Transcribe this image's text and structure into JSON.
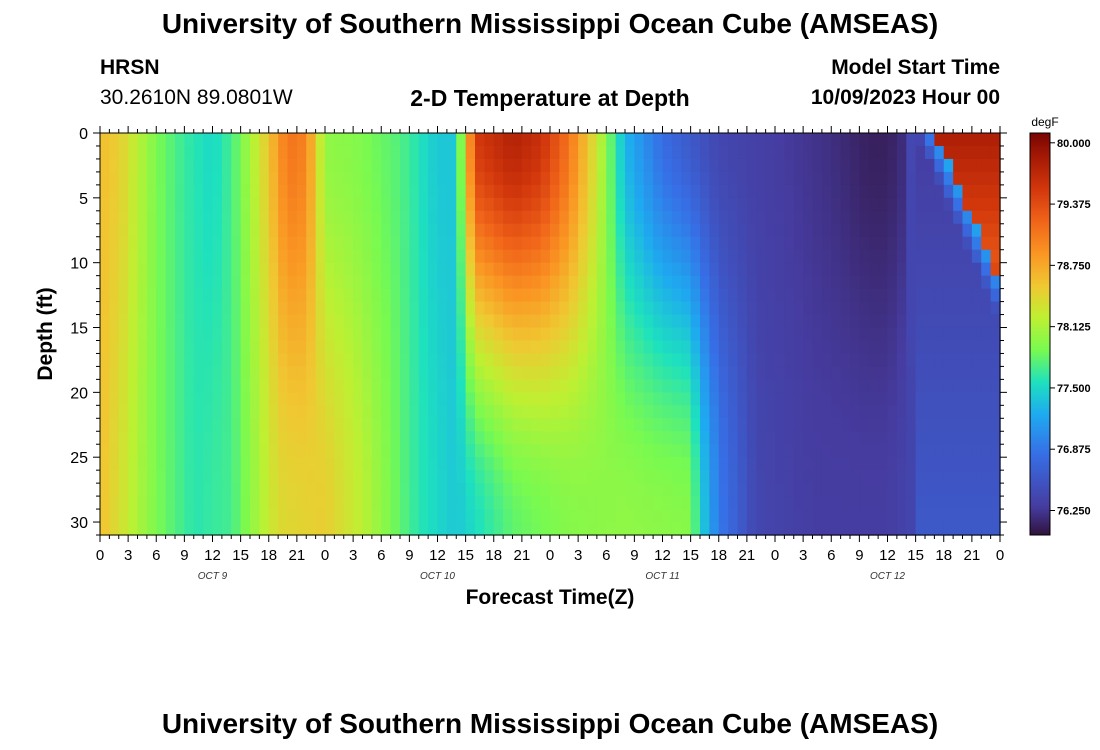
{
  "header": {
    "title": "University of Southern Mississippi Ocean Cube (AMSEAS)",
    "station": "HRSN",
    "coords": "30.2610N  89.0801W",
    "subtitle": "2-D Temperature at Depth",
    "start_label": "Model Start Time",
    "start_value": "10/09/2023 Hour 00"
  },
  "footer": {
    "title": "University of Southern Mississippi Ocean Cube (AMSEAS)"
  },
  "chart_data": {
    "type": "heatmap",
    "title": "2-D Temperature at Depth",
    "xlabel": "Forecast Time(Z)",
    "ylabel": "Depth (ft)",
    "x_range_hours": [
      0,
      96
    ],
    "y_range_ft": [
      0,
      31
    ],
    "x_tick_labels": [
      "0",
      "3",
      "6",
      "9",
      "12",
      "15",
      "18",
      "21",
      "0",
      "3",
      "6",
      "9",
      "12",
      "15",
      "18",
      "21",
      "0",
      "3",
      "6",
      "9",
      "12",
      "15",
      "18",
      "21",
      "0",
      "3",
      "6",
      "9",
      "12",
      "15",
      "18",
      "21",
      "0"
    ],
    "y_ticks": [
      0,
      5,
      10,
      15,
      20,
      25,
      30
    ],
    "day_labels": [
      "OCT 9",
      "OCT 10",
      "OCT 11",
      "OCT 12"
    ],
    "colorbar": {
      "unit": "degF",
      "min": 76.0,
      "max": 80.1,
      "ticks": [
        "80.000",
        "79.375",
        "78.750",
        "78.125",
        "77.500",
        "76.875",
        "76.250"
      ],
      "tick_values": [
        80.0,
        79.375,
        78.75,
        78.125,
        77.5,
        76.875,
        76.25
      ]
    },
    "surface_temp_degF": [
      {
        "h": 0,
        "v": 78.6
      },
      {
        "h": 2,
        "v": 78.5
      },
      {
        "h": 4,
        "v": 78.2
      },
      {
        "h": 6,
        "v": 77.9
      },
      {
        "h": 9,
        "v": 77.65
      },
      {
        "h": 12,
        "v": 77.5
      },
      {
        "h": 14,
        "v": 77.7
      },
      {
        "h": 17,
        "v": 78.3
      },
      {
        "h": 20,
        "v": 79.1
      },
      {
        "h": 22,
        "v": 79.0
      },
      {
        "h": 24,
        "v": 78.0
      },
      {
        "h": 27,
        "v": 77.95
      },
      {
        "h": 32,
        "v": 77.75
      },
      {
        "h": 36,
        "v": 77.4
      },
      {
        "h": 38,
        "v": 77.4
      },
      {
        "h": 40,
        "v": 79.5
      },
      {
        "h": 44,
        "v": 79.75
      },
      {
        "h": 47,
        "v": 79.6
      },
      {
        "h": 50,
        "v": 79.1
      },
      {
        "h": 53,
        "v": 78.3
      },
      {
        "h": 56,
        "v": 77.3
      },
      {
        "h": 60,
        "v": 76.8
      },
      {
        "h": 66,
        "v": 76.4
      },
      {
        "h": 72,
        "v": 76.3
      },
      {
        "h": 78,
        "v": 76.2
      },
      {
        "h": 82,
        "v": 76.1
      },
      {
        "h": 84,
        "v": 76.1
      },
      {
        "h": 86,
        "v": 76.2
      },
      {
        "h": 88,
        "v": 77.0
      },
      {
        "h": 90,
        "v": 79.8
      },
      {
        "h": 96,
        "v": 79.9
      }
    ],
    "bottom_temp_degF": [
      {
        "h": 0,
        "v": 78.6
      },
      {
        "h": 6,
        "v": 77.9
      },
      {
        "h": 10,
        "v": 77.6
      },
      {
        "h": 14,
        "v": 77.7
      },
      {
        "h": 19,
        "v": 78.4
      },
      {
        "h": 24,
        "v": 78.5
      },
      {
        "h": 28,
        "v": 78.2
      },
      {
        "h": 34,
        "v": 77.6
      },
      {
        "h": 38,
        "v": 77.4
      },
      {
        "h": 44,
        "v": 77.8
      },
      {
        "h": 50,
        "v": 77.95
      },
      {
        "h": 56,
        "v": 78.0
      },
      {
        "h": 63,
        "v": 77.95
      },
      {
        "h": 64,
        "v": 77.5
      },
      {
        "h": 66,
        "v": 76.9
      },
      {
        "h": 70,
        "v": 76.4
      },
      {
        "h": 76,
        "v": 76.3
      },
      {
        "h": 84,
        "v": 76.3
      },
      {
        "h": 90,
        "v": 76.5
      },
      {
        "h": 96,
        "v": 76.6
      }
    ]
  }
}
